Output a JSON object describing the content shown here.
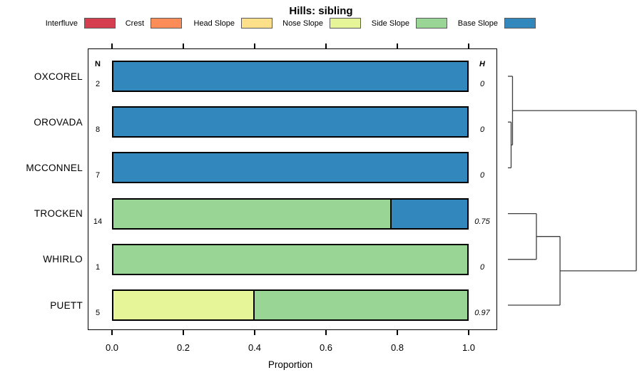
{
  "chart_data": {
    "type": "bar",
    "variant": "horizontal_stacked_proportion_with_dendrogram",
    "title": "Hills: sibling",
    "xlabel": "Proportion",
    "xlim": [
      0,
      1.0
    ],
    "xticks": [
      0,
      0.2,
      0.4,
      0.6,
      0.8,
      1.0
    ],
    "xtick_labels": [
      "0.0",
      "0.2",
      "0.4",
      "0.6",
      "0.8",
      "1.0"
    ],
    "n_header": "N",
    "h_header": "H",
    "grid": false,
    "legend_position": "top",
    "categories": [
      "Interfluve",
      "Crest",
      "Head Slope",
      "Nose Slope",
      "Side Slope",
      "Base Slope"
    ],
    "colors": {
      "Interfluve": "#D53E4F",
      "Crest": "#FC8D59",
      "Head Slope": "#FEE08B",
      "Nose Slope": "#E6F598",
      "Side Slope": "#99D594",
      "Base Slope": "#3288BD"
    },
    "rows": [
      {
        "name": "OXCOREL",
        "n": 2,
        "h": "0",
        "segments": [
          {
            "category": "Base Slope",
            "value": 1.0
          }
        ]
      },
      {
        "name": "OROVADA",
        "n": 8,
        "h": "0",
        "segments": [
          {
            "category": "Base Slope",
            "value": 1.0
          }
        ]
      },
      {
        "name": "MCCONNEL",
        "n": 7,
        "h": "0",
        "segments": [
          {
            "category": "Base Slope",
            "value": 1.0
          }
        ]
      },
      {
        "name": "TROCKEN",
        "n": 14,
        "h": "0.75",
        "segments": [
          {
            "category": "Side Slope",
            "value": 0.786
          },
          {
            "category": "Base Slope",
            "value": 0.214
          }
        ]
      },
      {
        "name": "WHIRLO",
        "n": 1,
        "h": "0",
        "segments": [
          {
            "category": "Side Slope",
            "value": 1.0
          }
        ]
      },
      {
        "name": "PUETT",
        "n": 5,
        "h": "0.97",
        "segments": [
          {
            "category": "Nose Slope",
            "value": 0.4
          },
          {
            "category": "Side Slope",
            "value": 0.6
          }
        ]
      }
    ],
    "dendrogram": {
      "leaves": [
        "OXCOREL",
        "OROVADA",
        "MCCONNEL",
        "TROCKEN",
        "WHIRLO",
        "PUETT"
      ],
      "merges": [
        {
          "id": "m1",
          "a": "OROVADA",
          "b": "MCCONNEL",
          "height": 0.025
        },
        {
          "id": "m2",
          "a": "OXCOREL",
          "b": "m1",
          "height": 0.036
        },
        {
          "id": "m3",
          "a": "TROCKEN",
          "b": "WHIRLO",
          "height": 0.222
        },
        {
          "id": "m4",
          "a": "m3",
          "b": "PUETT",
          "height": 0.406
        },
        {
          "id": "root",
          "a": "m2",
          "b": "m4",
          "height": 1.0
        }
      ]
    }
  }
}
